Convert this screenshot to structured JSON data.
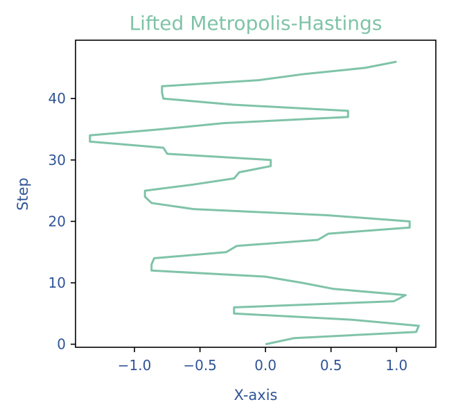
{
  "chart_data": {
    "type": "line",
    "title": "Lifted Metropolis-Hastings",
    "xlabel": "X-axis",
    "ylabel": "Step",
    "xlim": [
      -1.45,
      1.3
    ],
    "ylim": [
      -0.5,
      49.5
    ],
    "xticks": [
      -1.0,
      -0.5,
      0.0,
      0.5,
      1.0
    ],
    "xtick_labels": [
      "−1.0",
      "−0.5",
      "0.0",
      "0.5",
      "1.0"
    ],
    "yticks": [
      0,
      10,
      20,
      30,
      40
    ],
    "ytick_labels": [
      "0",
      "10",
      "20",
      "30",
      "40"
    ],
    "grid": false,
    "series": [
      {
        "x": [
          0.0,
          0.22,
          1.15,
          1.17,
          0.65,
          -0.24,
          -0.24,
          0.98,
          1.07,
          0.52,
          0.28,
          0.0,
          -0.87,
          -0.87,
          -0.85,
          -0.3,
          -0.22,
          0.4,
          0.48,
          1.1,
          1.1,
          0.47,
          -0.55,
          -0.87,
          -0.92,
          -0.92,
          -0.55,
          -0.24,
          -0.2,
          0.04,
          0.04,
          -0.75,
          -0.78,
          -1.34,
          -1.34,
          -0.8,
          -0.32,
          0.63,
          0.63,
          -0.25,
          -0.78,
          -0.79,
          -0.79,
          -0.05,
          0.3,
          0.76,
          1.0
        ],
        "y": [
          0,
          1,
          2,
          3,
          4,
          5,
          6,
          7,
          8,
          9,
          10,
          11,
          12,
          13,
          14,
          15,
          16,
          17,
          18,
          19,
          20,
          21,
          22,
          23,
          24,
          25,
          26,
          27,
          28,
          29,
          30,
          31,
          32,
          33,
          34,
          35,
          36,
          37,
          38,
          39,
          40,
          41,
          42,
          43,
          44,
          45,
          46
        ]
      }
    ]
  },
  "colors": {
    "line": "#7fc3a8",
    "title": "#7fc3a8",
    "labels": "#2f5496",
    "axes": "#000000"
  }
}
